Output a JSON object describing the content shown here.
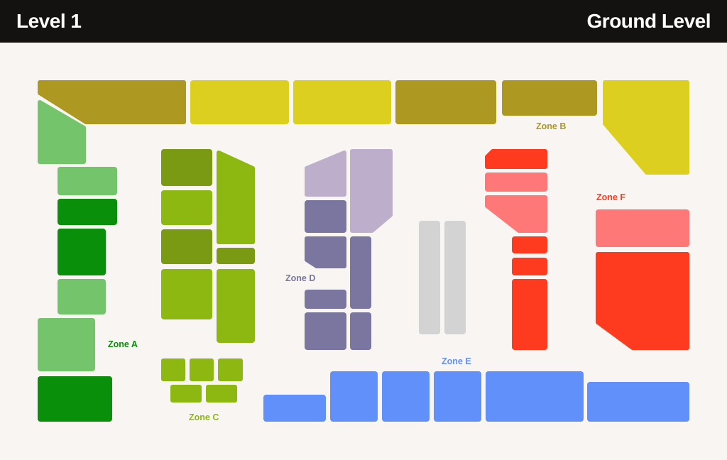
{
  "header": {
    "left_title": "Level 1",
    "right_title": "Ground Level"
  },
  "zones": {
    "a": {
      "label": "Zone A",
      "color": "#0a8f0a",
      "light": "#74c46c"
    },
    "b": {
      "label": "Zone B",
      "color": "#ad9922",
      "light": "#dccf1f"
    },
    "c": {
      "label": "Zone C",
      "color": "#8db811",
      "dark": "#7a9a14"
    },
    "d": {
      "label": "Zone D",
      "color": "#7a76a0",
      "light": "#bdaecb"
    },
    "e": {
      "label": "Zone E",
      "color": "#6190fb"
    },
    "f": {
      "label": "Zone F",
      "color": "#ff3b1f",
      "light": "#ff7878"
    },
    "unassigned": {
      "color": "#d3d3d3"
    }
  }
}
